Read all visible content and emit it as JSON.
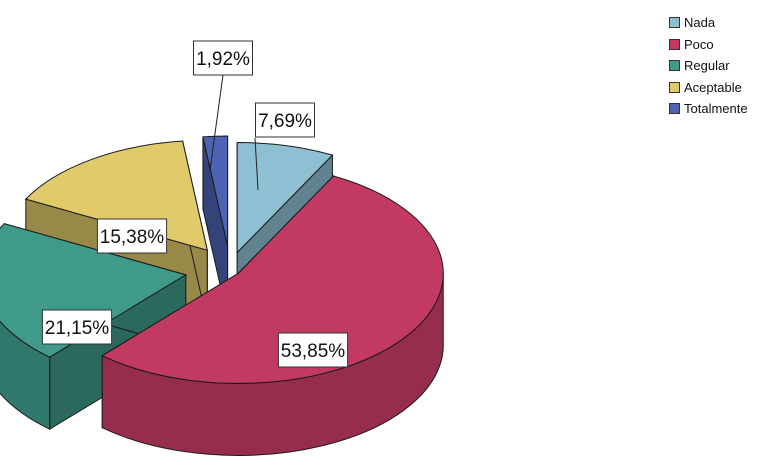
{
  "chart_data": {
    "type": "pie",
    "style": "3d-exploded",
    "title": "",
    "legend_position": "top-right",
    "categories": [
      "Nada",
      "Poco",
      "Regular",
      "Aceptable",
      "Totalmente"
    ],
    "values": [
      7.69,
      53.85,
      21.15,
      15.38,
      1.92
    ],
    "labels": [
      "7,69%",
      "53,85%",
      "21,15%",
      "15,38%",
      "1,92%"
    ],
    "colors": [
      "#8fbfd2",
      "#c23a62",
      "#3f9a8a",
      "#e0ca6a",
      "#4d63b3"
    ]
  }
}
